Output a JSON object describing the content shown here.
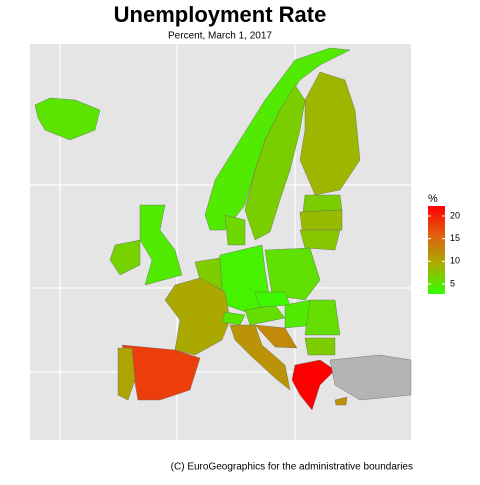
{
  "title": "Unemployment Rate",
  "subtitle": "Percent, March 1, 2017",
  "caption": "(C) EuroGeographics for the administrative boundaries",
  "legend": {
    "title": "%",
    "limits": [
      2.8,
      22.2
    ],
    "ticks": [
      5,
      10,
      15,
      20
    ],
    "colors": [
      "#33ff00",
      "#a6b000",
      "#e06010",
      "#ff0000"
    ],
    "na_color": "#b3b3b3"
  },
  "regions": {
    "values": [
      5,
      4.5,
      6.8,
      8.8,
      6.8,
      8.4,
      7.5,
      4.5,
      6.5,
      6,
      3.9,
      5.3,
      7,
      9.9,
      18,
      10.2,
      4.8,
      5.5,
      3.4,
      4.5,
      11.6,
      12.5,
      5.5,
      6.9,
      23.1,
      null,
      12
    ]
  }
}
